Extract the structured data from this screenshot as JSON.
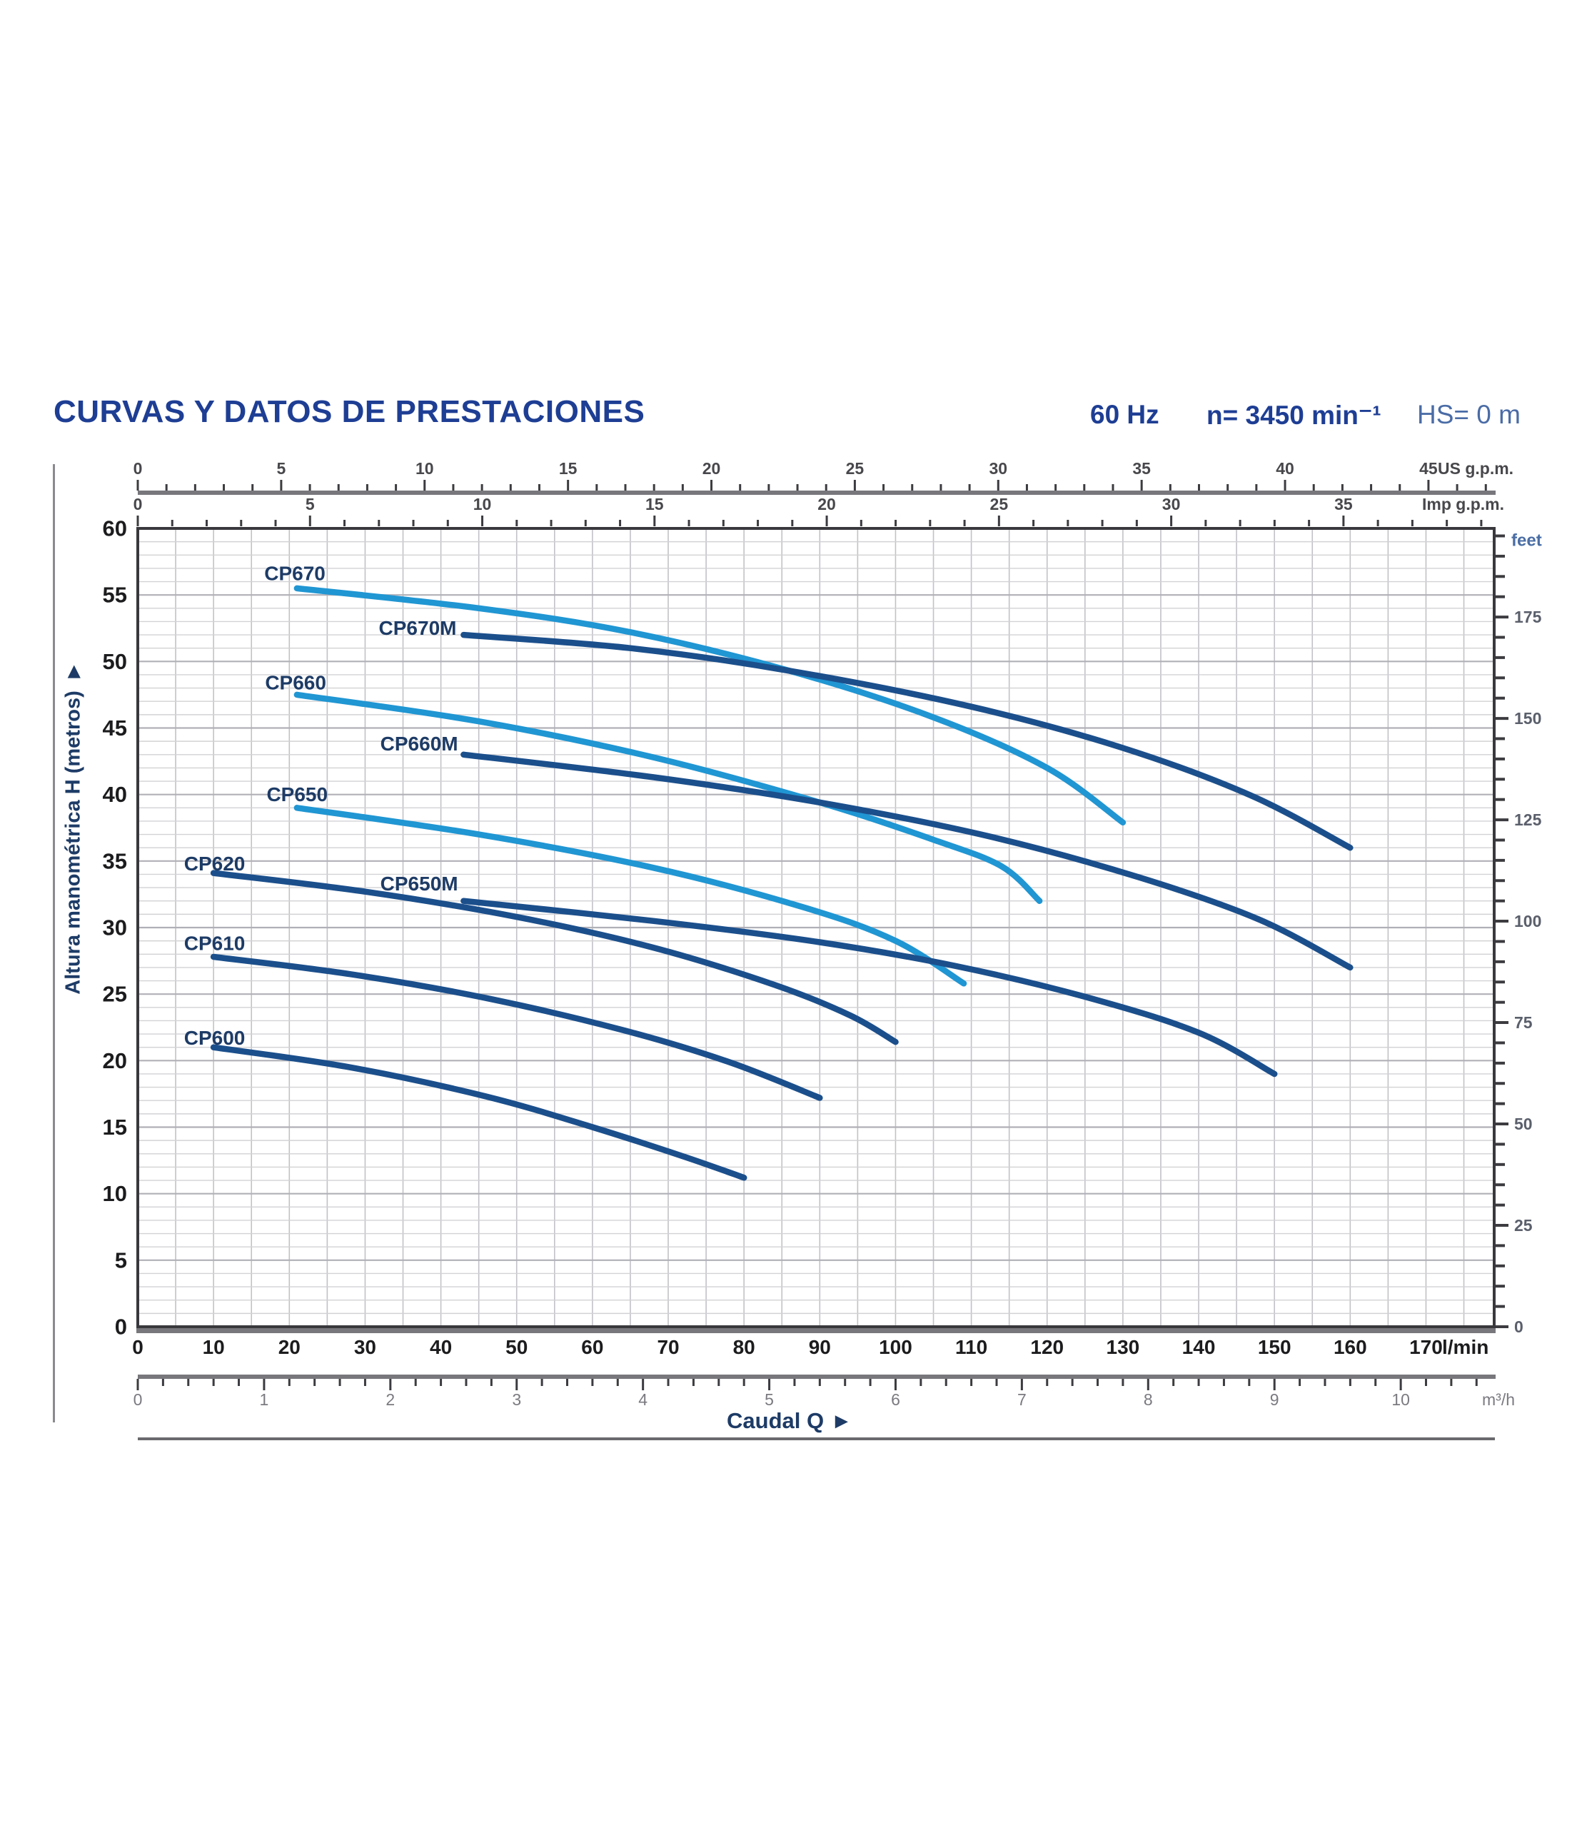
{
  "header": {
    "title": "CURVAS Y DATOS DE PRESTACIONES",
    "frequency": "60 Hz",
    "speed": "n= 3450 min⁻¹",
    "suction_head": "HS= 0 m"
  },
  "axis_titles": {
    "y": "Altura manométrica H (metros)",
    "y_arrow": "▶",
    "x": "Caudal Q",
    "x_arrow": "▶"
  },
  "colors": {
    "title_navy": "#1e3e94",
    "suction_blue": "#4a6ca6",
    "curve_light": "#2096d3",
    "curve_dark": "#1b4f8c",
    "curve_label": "#1d3b66",
    "axis_label_navy": "#1d3b66",
    "grid_minor_h": "#d2d2d5",
    "grid_major_h": "#b0b0b7",
    "grid_v": "#c2c2c7",
    "ruler_bar": "#77777c",
    "frame": "#39393d",
    "tick": "#3c3c40",
    "gray_tick_label": "#48484c",
    "feet_label": "#5a5f6b",
    "feet_title": "#4a6da4",
    "lmin_label": "#1c1c1e",
    "m3h_label": "#7a7a80"
  },
  "chart_data": {
    "type": "line",
    "title": "CURVAS Y DATOS DE PRESTACIONES",
    "conditions": [
      "60 Hz",
      "n= 3450 min⁻¹",
      "HS= 0 m"
    ],
    "xlabel": "Caudal Q",
    "ylabel": "Altura manométrica H (metros)",
    "grid": true,
    "x_axes": [
      {
        "id": "us_gpm",
        "unit": "US g.p.m.",
        "min": 0,
        "max": 45,
        "major_step": 5,
        "minor_step": 1,
        "lmin_per_unit": 3.785,
        "tick_labels": [
          "0",
          "5",
          "10",
          "15",
          "20",
          "25",
          "30",
          "35",
          "40",
          "45"
        ]
      },
      {
        "id": "imp_gpm",
        "unit": "Imp g.p.m.",
        "min": 0,
        "max": 35,
        "major_step": 5,
        "minor_step": 1,
        "lmin_per_unit": 4.546,
        "tick_labels": [
          "0",
          "5",
          "10",
          "15",
          "20",
          "25",
          "30",
          "35"
        ]
      },
      {
        "id": "l_min",
        "unit": "l/min",
        "min": 0,
        "max": 170,
        "major_step": 10,
        "minor_step": 0,
        "lmin_per_unit": 1,
        "tick_labels": [
          "0",
          "10",
          "20",
          "30",
          "40",
          "50",
          "60",
          "70",
          "80",
          "90",
          "100",
          "110",
          "120",
          "130",
          "140",
          "150",
          "160",
          "170"
        ]
      },
      {
        "id": "m3_h",
        "unit": "m³/h",
        "min": 0,
        "max": 10,
        "major_step": 1,
        "minor_step": 0.2,
        "lmin_per_unit": 16.667,
        "tick_labels": [
          "0",
          "1",
          "2",
          "3",
          "4",
          "5",
          "6",
          "7",
          "8",
          "9",
          "10"
        ]
      }
    ],
    "y_axes": [
      {
        "id": "metros",
        "unit": "metros",
        "min": 0,
        "max": 60,
        "major_step": 5,
        "minor_step": 1,
        "m_per_unit": 1,
        "tick_labels": [
          "0",
          "5",
          "10",
          "15",
          "20",
          "25",
          "30",
          "35",
          "40",
          "45",
          "50",
          "55",
          "60"
        ]
      },
      {
        "id": "feet",
        "unit": "feet",
        "min": 0,
        "max": 195,
        "major_step": 25,
        "minor_step": 5,
        "m_per_unit": 0.3048,
        "tick_labels": [
          "0",
          "25",
          "50",
          "75",
          "100",
          "125",
          "150",
          "175"
        ]
      }
    ],
    "x_range_lmin": [
      0,
      179
    ],
    "y_range_m": [
      0,
      60
    ],
    "series": [
      {
        "name": "CP670",
        "color": "light",
        "points": [
          [
            21,
            55.5
          ],
          [
            45,
            54.0
          ],
          [
            65,
            52.2
          ],
          [
            86,
            49.3
          ],
          [
            105,
            45.8
          ],
          [
            120,
            42.0
          ],
          [
            130,
            37.9
          ]
        ]
      },
      {
        "name": "CP670M",
        "color": "dark",
        "points": [
          [
            43,
            52.0
          ],
          [
            65,
            51.0
          ],
          [
            86,
            49.3
          ],
          [
            110,
            46.6
          ],
          [
            130,
            43.5
          ],
          [
            147,
            39.9
          ],
          [
            160,
            36.0
          ]
        ]
      },
      {
        "name": "CP660",
        "color": "light",
        "points": [
          [
            21,
            47.5
          ],
          [
            45,
            45.5
          ],
          [
            68,
            42.8
          ],
          [
            90,
            39.4
          ],
          [
            105,
            36.6
          ],
          [
            114,
            34.6
          ],
          [
            119,
            32.0
          ]
        ]
      },
      {
        "name": "CP660M",
        "color": "dark",
        "points": [
          [
            43,
            43.0
          ],
          [
            68,
            41.3
          ],
          [
            90,
            39.4
          ],
          [
            112,
            36.9
          ],
          [
            132,
            33.8
          ],
          [
            148,
            30.6
          ],
          [
            160,
            27.0
          ]
        ]
      },
      {
        "name": "CP650",
        "color": "light",
        "points": [
          [
            21,
            39.0
          ],
          [
            45,
            37.0
          ],
          [
            68,
            34.5
          ],
          [
            88,
            31.5
          ],
          [
            100,
            29.0
          ],
          [
            109,
            25.8
          ]
        ]
      },
      {
        "name": "CP650M",
        "color": "dark",
        "points": [
          [
            43,
            32.0
          ],
          [
            68,
            30.5
          ],
          [
            90,
            28.9
          ],
          [
            108,
            27.1
          ],
          [
            125,
            24.8
          ],
          [
            140,
            22.1
          ],
          [
            150,
            19.0
          ]
        ]
      },
      {
        "name": "CP620",
        "color": "dark",
        "points": [
          [
            10,
            34.1
          ],
          [
            30,
            32.7
          ],
          [
            50,
            30.8
          ],
          [
            68,
            28.5
          ],
          [
            84,
            25.7
          ],
          [
            94,
            23.4
          ],
          [
            100,
            21.4
          ]
        ]
      },
      {
        "name": "CP610",
        "color": "dark",
        "points": [
          [
            10,
            27.8
          ],
          [
            28,
            26.5
          ],
          [
            46,
            24.7
          ],
          [
            64,
            22.3
          ],
          [
            78,
            19.9
          ],
          [
            90,
            17.2
          ]
        ]
      },
      {
        "name": "CP600",
        "color": "dark",
        "points": [
          [
            10,
            21.0
          ],
          [
            28,
            19.5
          ],
          [
            46,
            17.3
          ],
          [
            60,
            15.0
          ],
          [
            72,
            12.8
          ],
          [
            80,
            11.2
          ]
        ]
      }
    ],
    "series_labels": [
      {
        "text": "CP670",
        "q": 16.7,
        "h": 56.1
      },
      {
        "text": "CP670M",
        "q": 31.8,
        "h": 52.0
      },
      {
        "text": "CP660",
        "q": 16.8,
        "h": 47.9
      },
      {
        "text": "CP660M",
        "q": 32.0,
        "h": 43.3
      },
      {
        "text": "CP650",
        "q": 17.0,
        "h": 39.5
      },
      {
        "text": "CP620",
        "q": 6.1,
        "h": 34.3
      },
      {
        "text": "CP650M",
        "q": 32.0,
        "h": 32.8
      },
      {
        "text": "CP610",
        "q": 6.1,
        "h": 28.3
      },
      {
        "text": "CP600",
        "q": 6.1,
        "h": 21.2
      }
    ]
  }
}
